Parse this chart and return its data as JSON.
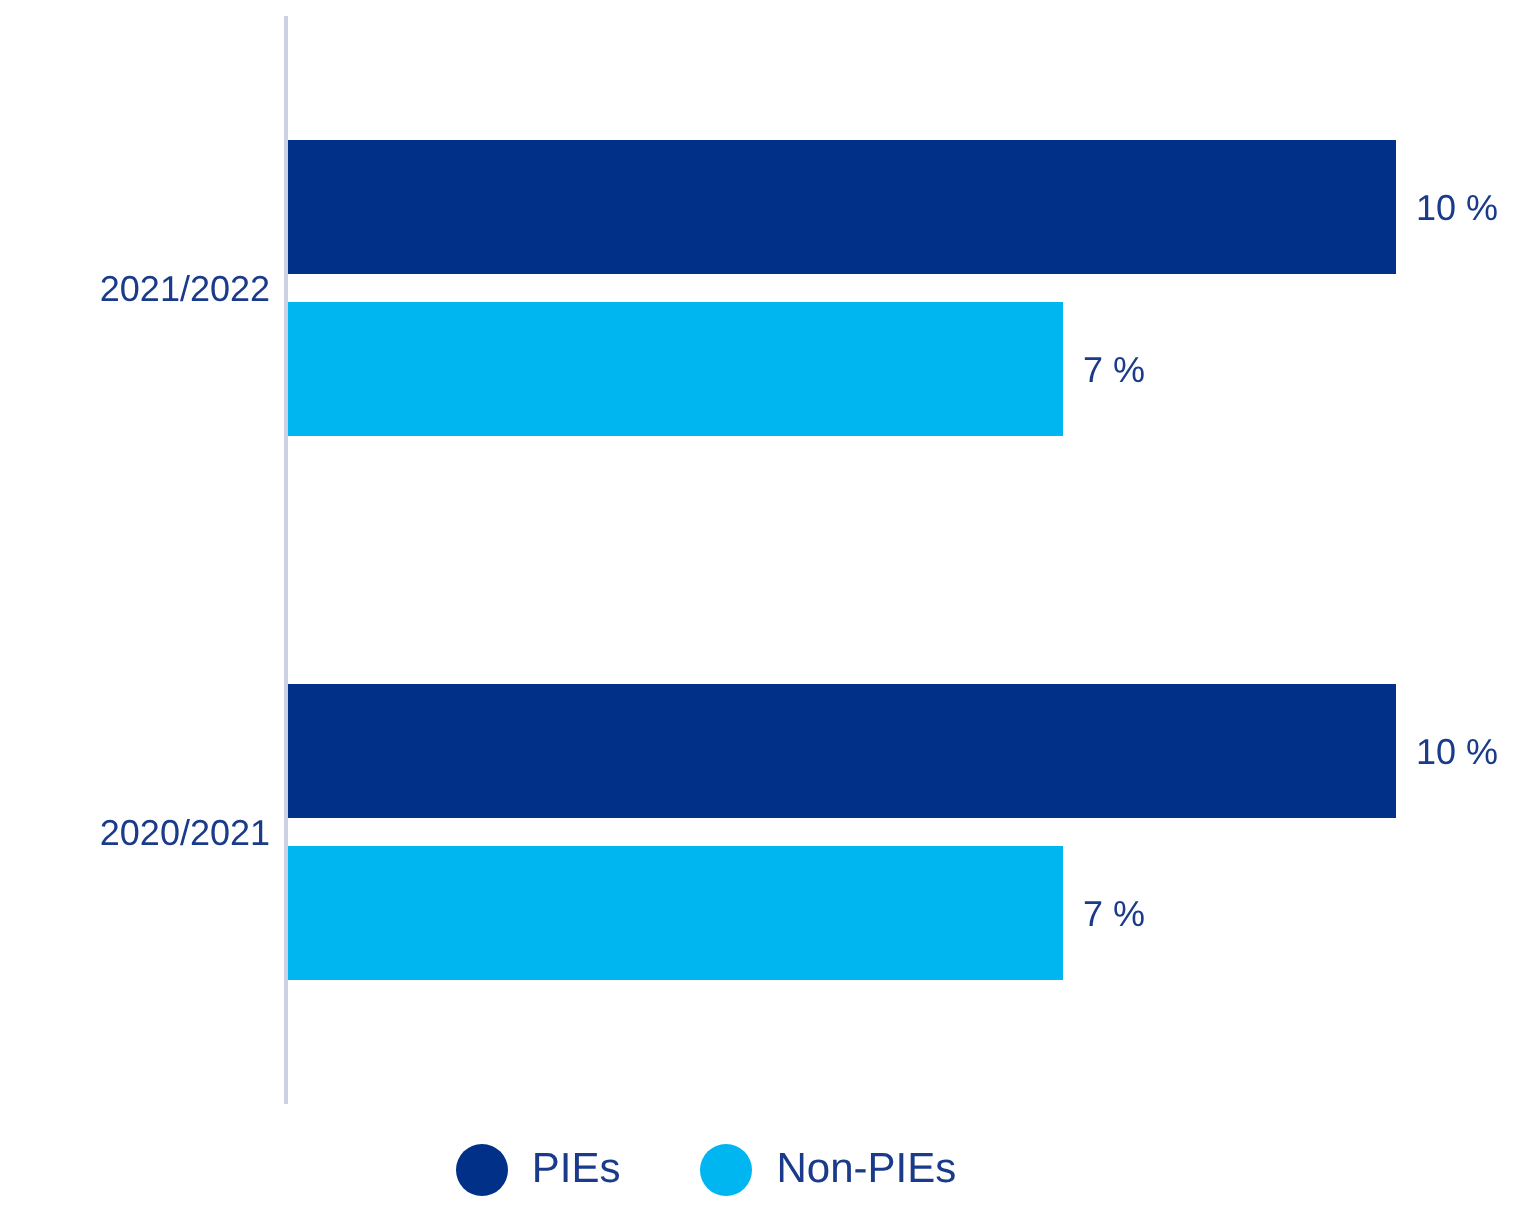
{
  "chart_data": {
    "type": "bar",
    "orientation": "horizontal",
    "categories": [
      "2021/2022",
      "2020/2021"
    ],
    "series": [
      {
        "name": "PIEs",
        "color": "#003087",
        "values": [
          10,
          10
        ],
        "value_labels": [
          "10 %",
          "10 %"
        ]
      },
      {
        "name": "Non-PIEs",
        "color": "#00b6f1",
        "values": [
          7,
          7
        ],
        "value_labels": [
          "7 %",
          "7 %"
        ]
      }
    ],
    "legend": "bottom",
    "grid": false
  }
}
